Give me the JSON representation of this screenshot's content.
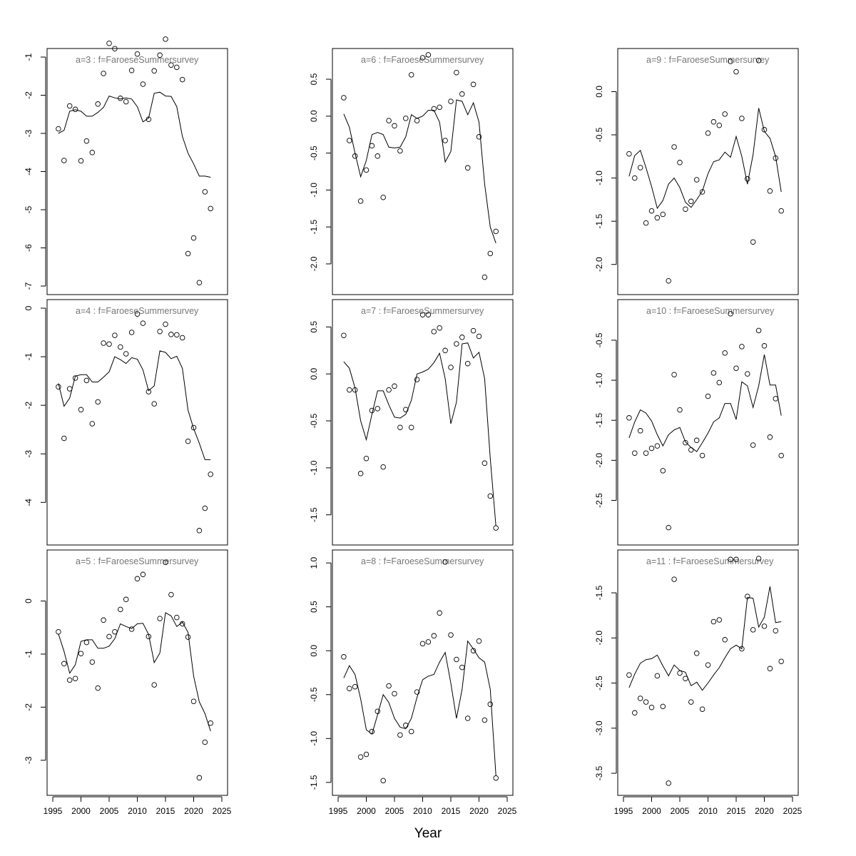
{
  "figure": {
    "xlabel": "Year"
  },
  "chart_data": [
    {
      "type": "scatter",
      "title": "a=3  :  f=FaroeseSummersurvey",
      "xlim": [
        1995,
        2025
      ],
      "ylim": [
        -7,
        -1
      ],
      "yticks": [
        -1,
        -2,
        -3,
        -4,
        -5,
        -6,
        -7
      ],
      "xticks": [],
      "grid": false,
      "x": [
        1996,
        1997,
        1998,
        1999,
        2000,
        2001,
        2002,
        2003,
        2004,
        2005,
        2006,
        2007,
        2008,
        2009,
        2010,
        2011,
        2012,
        2013,
        2014,
        2015,
        2016,
        2017,
        2018,
        2019,
        2020,
        2021,
        2022,
        2023
      ],
      "observed": [
        -2.88,
        -3.71,
        -2.28,
        -2.37,
        -3.72,
        -3.2,
        -3.5,
        -2.23,
        -1.43,
        -0.64,
        -0.78,
        -2.08,
        -2.17,
        -1.35,
        -0.92,
        -1.71,
        -2.63,
        -1.36,
        -0.95,
        -0.53,
        -1.21,
        -1.27,
        -1.59,
        -6.15,
        -5.74,
        -6.91,
        -4.53,
        -4.97
      ],
      "fitted": [
        -3.0,
        -2.92,
        -2.42,
        -2.38,
        -2.42,
        -2.55,
        -2.55,
        -2.45,
        -2.32,
        -2.02,
        -2.07,
        -2.1,
        -2.07,
        -2.1,
        -2.3,
        -2.7,
        -2.6,
        -1.95,
        -1.92,
        -2.02,
        -2.03,
        -2.3,
        -3.08,
        -3.52,
        -3.8,
        -4.12,
        -4.12,
        -4.15
      ]
    },
    {
      "type": "scatter",
      "title": "a=4  :  f=FaroeseSummersurvey",
      "xlim": [
        1995,
        2025
      ],
      "ylim": [
        -4.7,
        0
      ],
      "yticks": [
        0,
        -1,
        -2,
        -3,
        -4
      ],
      "xticks": [],
      "grid": false,
      "x": [
        1996,
        1997,
        1998,
        1999,
        2000,
        2001,
        2002,
        2003,
        2004,
        2005,
        2006,
        2007,
        2008,
        2009,
        2010,
        2011,
        2012,
        2013,
        2014,
        2015,
        2016,
        2017,
        2018,
        2019,
        2020,
        2021,
        2022,
        2023
      ],
      "observed": [
        -1.62,
        -2.68,
        -1.66,
        -1.44,
        -2.09,
        -1.49,
        -2.38,
        -1.93,
        -0.72,
        -0.74,
        -0.56,
        -0.8,
        -0.94,
        -0.5,
        -0.12,
        -0.31,
        -1.72,
        -1.97,
        -0.48,
        -0.33,
        -0.54,
        -0.55,
        -0.61,
        -2.74,
        -2.46,
        -4.58,
        -4.12,
        -3.42
      ],
      "fitted": [
        -1.55,
        -2.02,
        -1.85,
        -1.4,
        -1.37,
        -1.37,
        -1.52,
        -1.52,
        -1.42,
        -1.31,
        -1.0,
        -1.06,
        -1.14,
        -1.02,
        -1.05,
        -1.27,
        -1.7,
        -1.6,
        -0.88,
        -0.91,
        -1.04,
        -0.99,
        -1.24,
        -2.1,
        -2.48,
        -2.78,
        -3.12,
        -3.12
      ]
    },
    {
      "type": "scatter",
      "title": "a=5  :  f=FaroeseSummersurvey",
      "xlim": [
        1995,
        2025
      ],
      "ylim": [
        -3.5,
        0.8
      ],
      "yticks": [
        0,
        -1,
        -2,
        -3
      ],
      "xticks": [
        1995,
        2000,
        2005,
        2010,
        2015,
        2020,
        2025
      ],
      "grid": false,
      "x": [
        1996,
        1997,
        1998,
        1999,
        2000,
        2001,
        2002,
        2003,
        2004,
        2005,
        2006,
        2007,
        2008,
        2009,
        2010,
        2011,
        2012,
        2013,
        2014,
        2015,
        2016,
        2017,
        2018,
        2019,
        2020,
        2021,
        2022,
        2023
      ],
      "observed": [
        -0.58,
        -1.18,
        -1.49,
        -1.46,
        -0.99,
        -0.78,
        -1.15,
        -1.64,
        -0.36,
        -0.67,
        -0.58,
        -0.16,
        0.03,
        -0.53,
        0.42,
        0.5,
        -0.67,
        -1.58,
        -0.33,
        0.73,
        0.12,
        -0.31,
        -0.43,
        -0.68,
        -1.89,
        -3.33,
        -2.66,
        -2.3
      ],
      "fitted": [
        -0.62,
        -0.95,
        -1.36,
        -1.2,
        -0.76,
        -0.73,
        -0.73,
        -0.89,
        -0.89,
        -0.85,
        -0.71,
        -0.43,
        -0.48,
        -0.52,
        -0.43,
        -0.42,
        -0.63,
        -1.16,
        -0.98,
        -0.22,
        -0.28,
        -0.48,
        -0.4,
        -0.59,
        -1.42,
        -1.9,
        -2.12,
        -2.45
      ]
    },
    {
      "type": "scatter",
      "title": "a=6  :  f=FaroeseSummersurvey",
      "xlim": [
        1995,
        2025
      ],
      "ylim": [
        -2.3,
        0.8
      ],
      "yticks": [
        0.5,
        0.0,
        -0.5,
        -1.0,
        -1.5,
        -2.0
      ],
      "xticks": [],
      "grid": false,
      "x": [
        1996,
        1997,
        1998,
        1999,
        2000,
        2001,
        2002,
        2003,
        2004,
        2005,
        2006,
        2007,
        2008,
        2009,
        2010,
        2011,
        2012,
        2013,
        2014,
        2015,
        2016,
        2017,
        2018,
        2019,
        2020,
        2021,
        2022,
        2023
      ],
      "observed": [
        0.25,
        -0.33,
        -0.54,
        -1.15,
        -0.73,
        -0.4,
        -0.54,
        -1.1,
        -0.06,
        -0.13,
        -0.47,
        -0.03,
        0.56,
        -0.06,
        0.79,
        0.83,
        0.1,
        0.12,
        -0.33,
        0.2,
        0.59,
        0.3,
        -0.7,
        0.43,
        -0.28,
        -2.18,
        -1.86,
        -1.56
      ],
      "fitted": [
        0.03,
        -0.15,
        -0.5,
        -0.82,
        -0.6,
        -0.25,
        -0.22,
        -0.25,
        -0.42,
        -0.43,
        -0.42,
        -0.28,
        0.02,
        -0.03,
        0.0,
        0.08,
        0.08,
        -0.08,
        -0.62,
        -0.48,
        0.22,
        0.2,
        0.02,
        0.18,
        -0.08,
        -0.92,
        -1.5,
        -1.72
      ]
    },
    {
      "type": "scatter",
      "title": "a=7  :  f=FaroeseSummersurvey",
      "xlim": [
        1995,
        2025
      ],
      "ylim": [
        -1.73,
        0.7
      ],
      "yticks": [
        0.5,
        0.0,
        -0.5,
        -1.0,
        -1.5
      ],
      "xticks": [],
      "grid": false,
      "x": [
        1996,
        1997,
        1998,
        1999,
        2000,
        2001,
        2002,
        2003,
        2004,
        2005,
        2006,
        2007,
        2008,
        2009,
        2010,
        2011,
        2012,
        2013,
        2014,
        2015,
        2016,
        2017,
        2018,
        2019,
        2020,
        2021,
        2022,
        2023
      ],
      "observed": [
        0.41,
        -0.17,
        -0.17,
        -1.06,
        -0.9,
        -0.39,
        -0.37,
        -0.99,
        -0.17,
        -0.13,
        -0.57,
        -0.38,
        -0.57,
        -0.06,
        0.63,
        0.63,
        0.45,
        0.49,
        0.25,
        0.07,
        0.32,
        0.39,
        0.11,
        0.46,
        0.4,
        -0.95,
        -1.3,
        -1.64
      ],
      "fitted": [
        0.13,
        0.06,
        -0.15,
        -0.5,
        -0.7,
        -0.43,
        -0.18,
        -0.18,
        -0.33,
        -0.46,
        -0.47,
        -0.43,
        -0.28,
        0.0,
        0.02,
        0.05,
        0.12,
        0.22,
        -0.05,
        -0.53,
        -0.3,
        0.32,
        0.33,
        0.17,
        0.23,
        -0.05,
        -0.9,
        -1.62
      ]
    },
    {
      "type": "scatter",
      "title": "a=8  :  f=FaroeseSummersurvey",
      "xlim": [
        1995,
        2025
      ],
      "ylim": [
        -1.55,
        1.05
      ],
      "yticks": [
        1.0,
        0.5,
        0.0,
        -0.5,
        -1.0,
        -1.5
      ],
      "xticks": [
        1995,
        2000,
        2005,
        2010,
        2015,
        2020,
        2025
      ],
      "grid": false,
      "x": [
        1996,
        1997,
        1998,
        1999,
        2000,
        2001,
        2002,
        2003,
        2004,
        2005,
        2006,
        2007,
        2008,
        2009,
        2010,
        2011,
        2012,
        2013,
        2014,
        2015,
        2016,
        2017,
        2018,
        2019,
        2020,
        2021,
        2022,
        2023
      ],
      "observed": [
        -0.07,
        -0.43,
        -0.41,
        -1.21,
        -1.18,
        -0.92,
        -0.69,
        -1.48,
        -0.4,
        -0.49,
        -0.96,
        -0.85,
        -0.92,
        -0.47,
        0.08,
        0.1,
        0.17,
        0.43,
        1.01,
        0.18,
        -0.1,
        -0.19,
        -0.77,
        0.0,
        0.11,
        -0.79,
        -0.61,
        -1.45
      ],
      "fitted": [
        -0.31,
        -0.17,
        -0.27,
        -0.55,
        -0.9,
        -0.95,
        -0.73,
        -0.5,
        -0.59,
        -0.77,
        -0.87,
        -0.89,
        -0.77,
        -0.53,
        -0.33,
        -0.29,
        -0.27,
        -0.13,
        -0.02,
        -0.37,
        -0.77,
        -0.44,
        0.11,
        0.02,
        -0.08,
        -0.13,
        -0.44,
        -1.42
      ]
    },
    {
      "type": "scatter",
      "title": "a=9  :  f=FaroeseSummersurvey",
      "xlim": [
        1995,
        2025
      ],
      "ylim": [
        -2.25,
        0.4
      ],
      "yticks": [
        0.0,
        -0.5,
        -1.0,
        -1.5,
        -2.0
      ],
      "xticks": [],
      "grid": false,
      "x": [
        1996,
        1997,
        1998,
        1999,
        2000,
        2001,
        2002,
        2003,
        2004,
        2005,
        2006,
        2007,
        2008,
        2009,
        2010,
        2011,
        2012,
        2013,
        2014,
        2015,
        2016,
        2017,
        2018,
        2019,
        2020,
        2021,
        2022,
        2023
      ],
      "observed": [
        -0.72,
        -1.0,
        -0.88,
        -1.52,
        -1.38,
        -1.46,
        -1.42,
        -2.19,
        -0.64,
        -0.82,
        -1.36,
        -1.27,
        -1.02,
        -1.16,
        -0.48,
        -0.35,
        -0.39,
        -0.26,
        0.35,
        0.23,
        -0.31,
        -1.01,
        -1.74,
        0.36,
        -0.44,
        -1.15,
        -0.77,
        -1.38
      ],
      "fitted": [
        -0.98,
        -0.74,
        -0.68,
        -0.88,
        -1.1,
        -1.35,
        -1.26,
        -1.07,
        -1.0,
        -1.11,
        -1.28,
        -1.34,
        -1.25,
        -1.15,
        -0.95,
        -0.81,
        -0.79,
        -0.7,
        -0.76,
        -0.52,
        -0.75,
        -1.07,
        -0.73,
        -0.19,
        -0.46,
        -0.54,
        -0.75,
        -1.16
      ]
    },
    {
      "type": "scatter",
      "title": "a=10  :  f=FaroeseSummersurvey",
      "xlim": [
        1995,
        2025
      ],
      "ylim": [
        -2.95,
        -0.1
      ],
      "yticks": [
        -0.5,
        -1.0,
        -1.5,
        -2.0,
        -2.5
      ],
      "xticks": [],
      "grid": false,
      "x": [
        1996,
        1997,
        1998,
        1999,
        2000,
        2001,
        2002,
        2003,
        2004,
        2005,
        2006,
        2007,
        2008,
        2009,
        2010,
        2011,
        2012,
        2013,
        2014,
        2015,
        2016,
        2017,
        2018,
        2019,
        2020,
        2021,
        2022,
        2023
      ],
      "observed": [
        -1.47,
        -1.91,
        -1.63,
        -1.91,
        -1.85,
        -1.82,
        -2.13,
        -2.84,
        -0.93,
        -1.37,
        -1.78,
        -1.87,
        -1.75,
        -1.94,
        -1.2,
        -0.91,
        -1.03,
        -0.66,
        -0.17,
        -0.85,
        -0.58,
        -0.92,
        -1.81,
        -0.38,
        -0.57,
        -1.71,
        -1.23,
        -1.94
      ],
      "fitted": [
        -1.72,
        -1.52,
        -1.37,
        -1.41,
        -1.51,
        -1.68,
        -1.82,
        -1.68,
        -1.62,
        -1.59,
        -1.77,
        -1.84,
        -1.89,
        -1.78,
        -1.66,
        -1.52,
        -1.47,
        -1.29,
        -1.29,
        -1.49,
        -1.02,
        -1.07,
        -1.34,
        -1.07,
        -0.68,
        -1.06,
        -1.06,
        -1.44
      ]
    },
    {
      "type": "scatter",
      "title": "a=11  :  f=FaroeseSummersurvey",
      "xlim": [
        1995,
        2025
      ],
      "ylim": [
        -3.65,
        -1.12
      ],
      "yticks": [
        -1.5,
        -2.0,
        -2.5,
        -3.0,
        -3.5
      ],
      "xticks": [
        1995,
        2000,
        2005,
        2010,
        2015,
        2020,
        2025
      ],
      "grid": false,
      "x": [
        1996,
        1997,
        1998,
        1999,
        2000,
        2001,
        2002,
        2003,
        2004,
        2005,
        2006,
        2007,
        2008,
        2009,
        2010,
        2011,
        2012,
        2013,
        2014,
        2015,
        2016,
        2017,
        2018,
        2019,
        2020,
        2021,
        2022,
        2023
      ],
      "observed": [
        -2.41,
        -2.83,
        -2.67,
        -2.71,
        -2.77,
        -2.42,
        -2.76,
        -3.61,
        -1.35,
        -2.39,
        -2.45,
        -2.71,
        -2.17,
        -2.79,
        -2.3,
        -1.82,
        -1.8,
        -2.02,
        -1.13,
        -1.13,
        -2.12,
        -1.54,
        -1.91,
        -1.12,
        -1.87,
        -2.34,
        -1.92,
        -2.26
      ],
      "fitted": [
        -2.55,
        -2.4,
        -2.28,
        -2.24,
        -2.23,
        -2.19,
        -2.31,
        -2.42,
        -2.3,
        -2.36,
        -2.38,
        -2.53,
        -2.49,
        -2.58,
        -2.5,
        -2.41,
        -2.33,
        -2.22,
        -2.12,
        -2.08,
        -2.12,
        -1.55,
        -1.56,
        -1.88,
        -1.77,
        -1.43,
        -1.83,
        -1.82
      ]
    }
  ]
}
